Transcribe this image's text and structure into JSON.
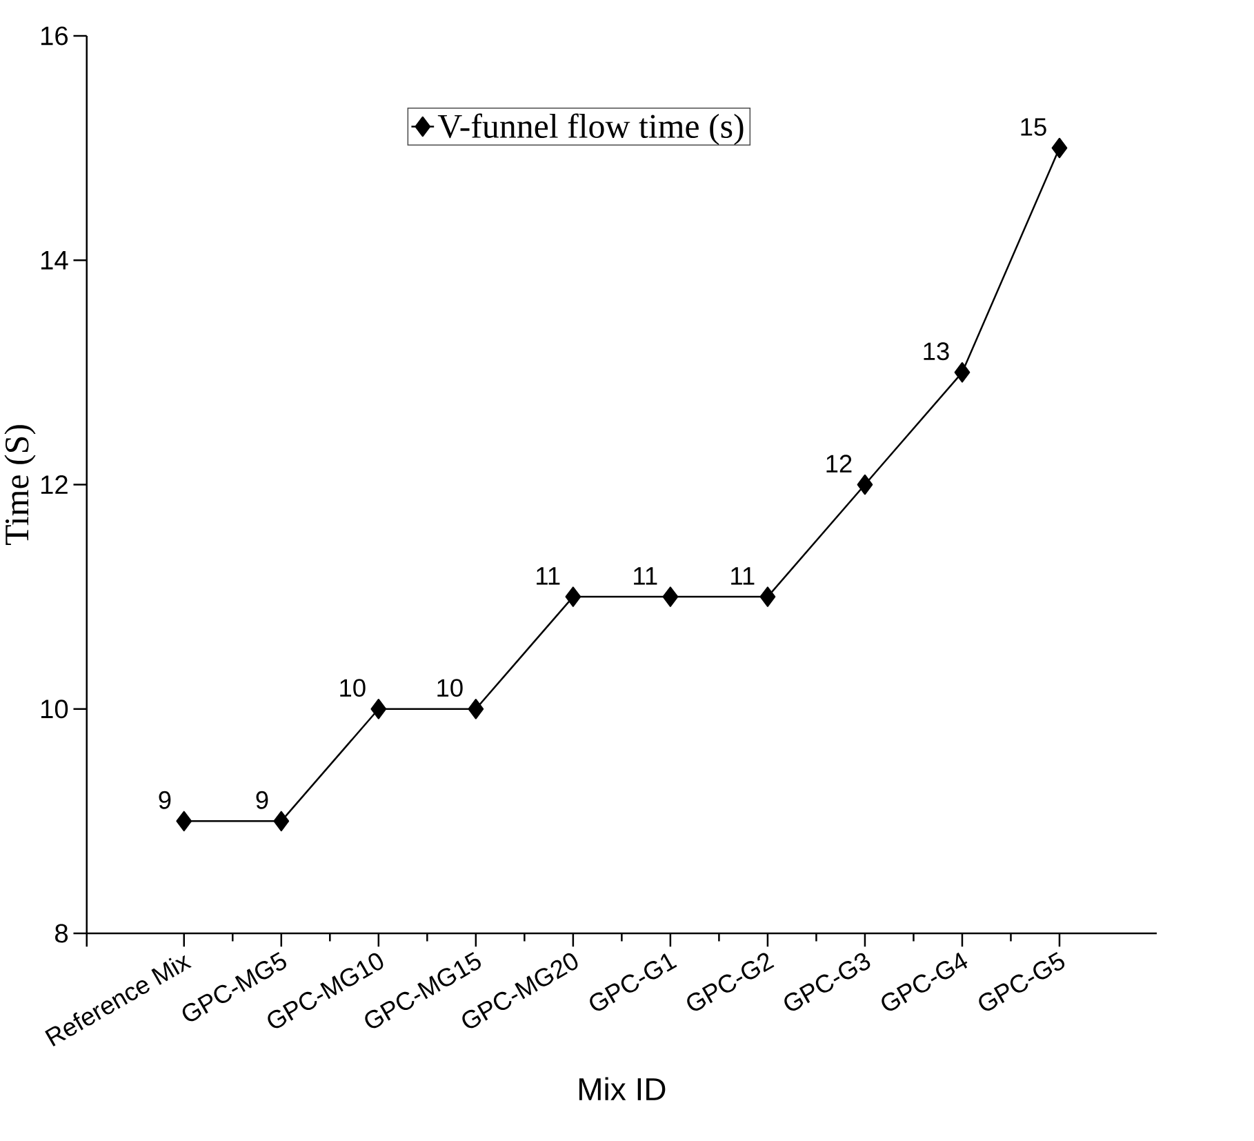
{
  "chart_data": {
    "type": "line",
    "xlabel": "Mix ID",
    "ylabel": "Time (S)",
    "categories": [
      "Reference Mix",
      "GPC-MG5",
      "GPC-MG10",
      "GPC-MG15",
      "GPC-MG20",
      "GPC-G1",
      "GPC-G2",
      "GPC-G3",
      "GPC-G4",
      "GPC-G5"
    ],
    "series": [
      {
        "name": "V-funnel flow time (s)",
        "color": "#000000",
        "values": [
          9,
          9,
          10,
          10,
          11,
          11,
          11,
          12,
          13,
          15
        ]
      }
    ],
    "ylim": [
      8,
      16
    ],
    "yticks": [
      8,
      10,
      12,
      14,
      16
    ],
    "data_labels": true,
    "legend": "top",
    "marker": "diamond",
    "line_style": "solid",
    "grid": false
  }
}
